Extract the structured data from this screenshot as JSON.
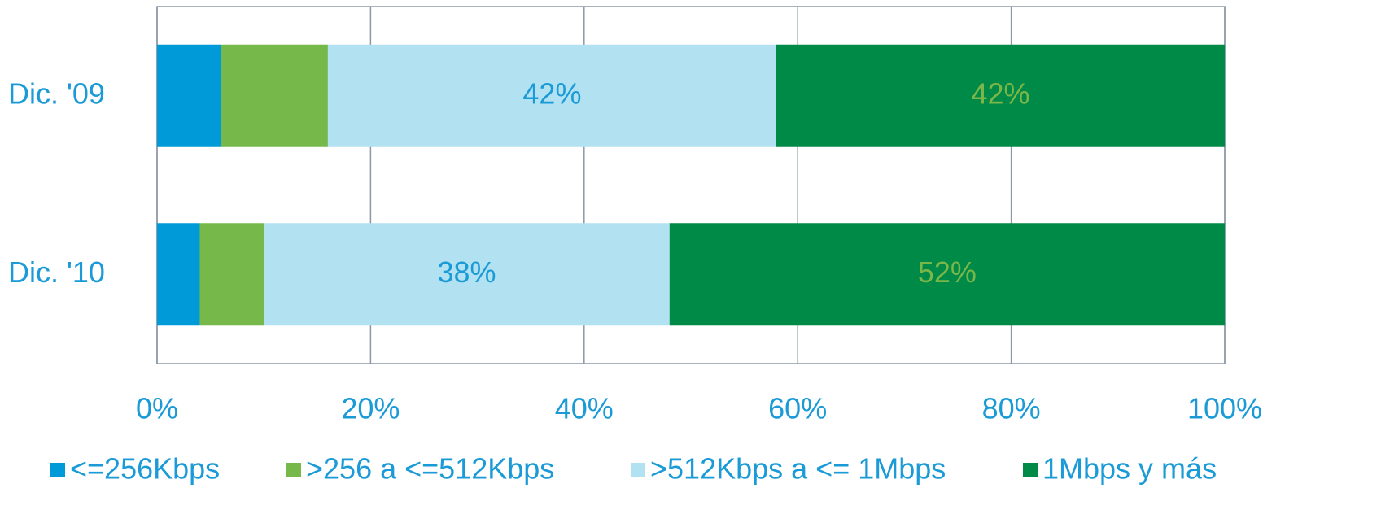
{
  "chart_data": {
    "type": "stacked_barh",
    "categories": [
      "Dic. '09",
      "Dic. '10"
    ],
    "series": [
      {
        "name": "<=256Kbps",
        "color": "#009ad8",
        "values": [
          6,
          4
        ]
      },
      {
        "name": ">256 a <=512Kbps",
        "color": "#77b84a",
        "values": [
          10,
          6
        ]
      },
      {
        "name": ">512Kbps a <= 1Mbps",
        "color": "#b2e1f1",
        "values": [
          42,
          38
        ],
        "value_labels": [
          "42%",
          "38%"
        ],
        "label_color": "#1a9ad6"
      },
      {
        "name": "1Mbps y más",
        "color": "#008a47",
        "values": [
          42,
          52
        ],
        "value_labels": [
          "42%",
          "52%"
        ],
        "label_color": "#7ab648"
      }
    ],
    "xlim": [
      0,
      100
    ],
    "xticks": [
      {
        "value": 0,
        "label": "0%"
      },
      {
        "value": 20,
        "label": "20%"
      },
      {
        "value": 40,
        "label": "40%"
      },
      {
        "value": 60,
        "label": "60%"
      },
      {
        "value": 80,
        "label": "80%"
      },
      {
        "value": 100,
        "label": "100%"
      }
    ],
    "grid": true
  }
}
